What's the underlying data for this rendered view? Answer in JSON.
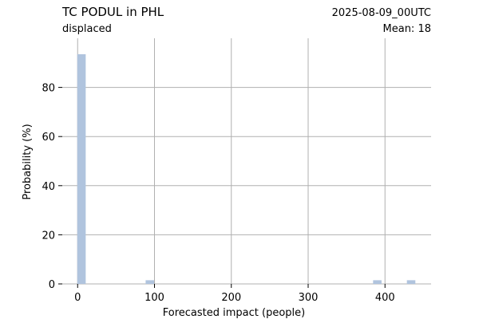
{
  "chart_data": {
    "type": "bar",
    "title": "TC PODUL in PHL",
    "subtitle": "displaced",
    "date_label": "2025-08-09_00UTC",
    "mean_label": "Mean: 18",
    "xlabel": "Forecasted impact (people)",
    "ylabel": "Probability (%)",
    "xlim": [
      -20,
      460
    ],
    "ylim": [
      0,
      100
    ],
    "xticks": [
      0,
      100,
      200,
      300,
      400
    ],
    "yticks": [
      0,
      20,
      40,
      60,
      80
    ],
    "grid": true,
    "bin_width": 11,
    "bars": [
      {
        "x": 5,
        "value": 93.5
      },
      {
        "x": 94,
        "value": 1.5
      },
      {
        "x": 390,
        "value": 1.5
      },
      {
        "x": 434,
        "value": 1.5
      }
    ]
  },
  "colors": {
    "bar": "#b0c4de",
    "grid": "#b0b0b0",
    "date": "#ff0000",
    "text": "#000000"
  }
}
